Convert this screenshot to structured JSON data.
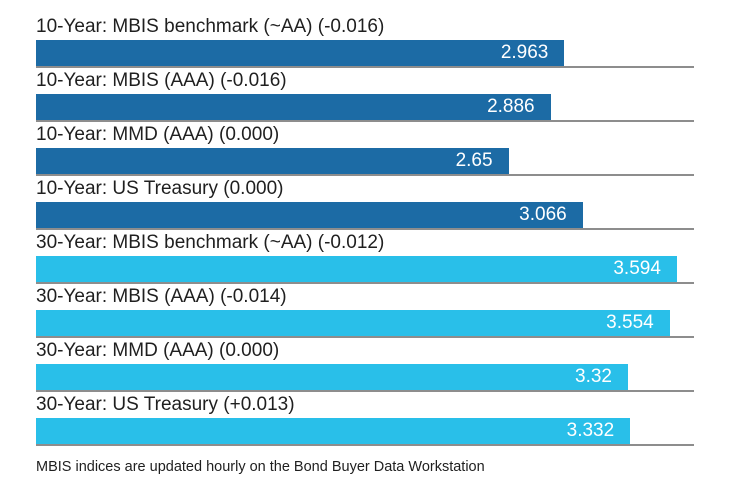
{
  "chart_data": {
    "type": "bar",
    "orientation": "horizontal",
    "title": "",
    "footnote": "MBIS indices are updated hourly on the Bond Buyer Data Workstation",
    "xlim": [
      0,
      3.69
    ],
    "grid": "underline-per-row",
    "legend_position": "none",
    "value_label_position": "inside-right",
    "category_label_position": "above-bar",
    "colors": {
      "series_10_year": "#1c6ba5",
      "series_30_year": "#29bfe9",
      "row_underline": "#8d8d8d",
      "label_text": "#1f1f1f",
      "value_text": "#ffffff",
      "background": "#ffffff"
    },
    "categories": [
      "10-Year: MBIS benchmark (~AA) (-0.016)",
      "10-Year: MBIS (AAA) (-0.016)",
      "10-Year: MMD (AAA) (0.000)",
      "10-Year: US Treasury (0.000)",
      "30-Year: MBIS benchmark (~AA) (-0.012)",
      "30-Year: MBIS (AAA) (-0.014)",
      "30-Year: MMD (AAA) (0.000)",
      "30-Year: US Treasury (+0.013)"
    ],
    "values": [
      2.963,
      2.886,
      2.65,
      3.066,
      3.594,
      3.554,
      3.32,
      3.332
    ],
    "rows": [
      {
        "label": "10-Year: MBIS benchmark (~AA) (-0.016)",
        "value": 2.963,
        "display_value": "2.963",
        "series": "10-year",
        "color": "#1c6ba5"
      },
      {
        "label": "10-Year: MBIS (AAA) (-0.016)",
        "value": 2.886,
        "display_value": "2.886",
        "series": "10-year",
        "color": "#1c6ba5"
      },
      {
        "label": "10-Year: MMD (AAA) (0.000)",
        "value": 2.65,
        "display_value": "2.65",
        "series": "10-year",
        "color": "#1c6ba5"
      },
      {
        "label": "10-Year: US Treasury (0.000)",
        "value": 3.066,
        "display_value": "3.066",
        "series": "10-year",
        "color": "#1c6ba5"
      },
      {
        "label": "30-Year: MBIS benchmark (~AA) (-0.012)",
        "value": 3.594,
        "display_value": "3.594",
        "series": "30-year",
        "color": "#29bfe9"
      },
      {
        "label": "30-Year: MBIS (AAA) (-0.014)",
        "value": 3.554,
        "display_value": "3.554",
        "series": "30-year",
        "color": "#29bfe9"
      },
      {
        "label": "30-Year: MMD (AAA) (0.000)",
        "value": 3.32,
        "display_value": "3.32",
        "series": "30-year",
        "color": "#29bfe9"
      },
      {
        "label": "30-Year: US Treasury (+0.013)",
        "value": 3.332,
        "display_value": "3.332",
        "series": "30-year",
        "color": "#29bfe9"
      }
    ]
  }
}
